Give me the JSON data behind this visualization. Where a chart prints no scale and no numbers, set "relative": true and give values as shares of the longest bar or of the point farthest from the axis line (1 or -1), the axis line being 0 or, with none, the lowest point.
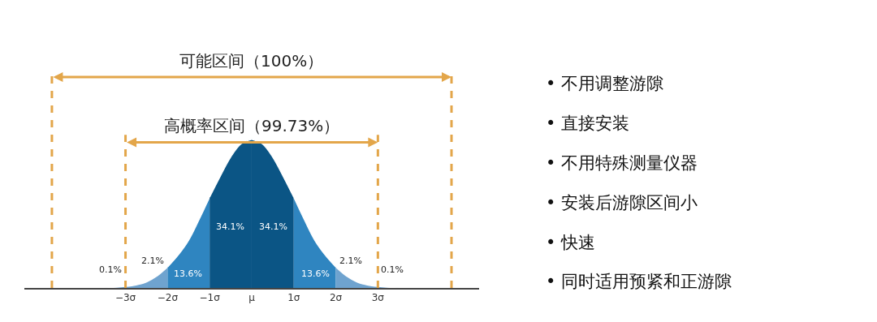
{
  "chart_data": {
    "type": "area",
    "relative": true,
    "xlim": [
      -5.4,
      5.4
    ],
    "xticks": [
      {
        "value": -3,
        "label": "−3σ"
      },
      {
        "value": -2,
        "label": "−2σ"
      },
      {
        "value": -1,
        "label": "−1σ"
      },
      {
        "value": 0,
        "label": "μ"
      },
      {
        "value": 1,
        "label": "1σ"
      },
      {
        "value": 2,
        "label": "2σ"
      },
      {
        "value": 3,
        "label": "3σ"
      }
    ],
    "series": [
      {
        "name": "0.1%",
        "color": "#6fa3cf",
        "x": [
          -4.5,
          -4,
          -3.5,
          -3
        ],
        "values": [
          0,
          0,
          0,
          0.01
        ]
      },
      {
        "name": "2.1%",
        "color": "#6fa3cf",
        "x": [
          -3,
          -2.75,
          -2.5,
          -2.25,
          -2
        ],
        "values": [
          0.01,
          0.02,
          0.04,
          0.08,
          0.14
        ]
      },
      {
        "name": "13.6%",
        "color": "#2f85c0",
        "x": [
          -2,
          -1.75,
          -1.5,
          -1.25,
          -1
        ],
        "values": [
          0.14,
          0.22,
          0.32,
          0.46,
          0.61
        ]
      },
      {
        "name": "34.1%",
        "color": "#0b5585",
        "x": [
          -1,
          -0.75,
          -0.5,
          -0.25,
          0
        ],
        "values": [
          0.61,
          0.75,
          0.88,
          0.97,
          1
        ]
      },
      {
        "name": "34.1%",
        "color": "#0b5585",
        "x": [
          0,
          0.25,
          0.5,
          0.75,
          1
        ],
        "values": [
          1,
          0.97,
          0.88,
          0.75,
          0.61
        ]
      },
      {
        "name": "13.6%",
        "color": "#2f85c0",
        "x": [
          1,
          1.25,
          1.5,
          1.75,
          2
        ],
        "values": [
          0.61,
          0.46,
          0.32,
          0.22,
          0.14
        ]
      },
      {
        "name": "2.1%",
        "color": "#6fa3cf",
        "x": [
          2,
          2.25,
          2.5,
          2.75,
          3
        ],
        "values": [
          0.14,
          0.08,
          0.04,
          0.02,
          0.01
        ]
      },
      {
        "name": "0.1%",
        "color": "#6fa3cf",
        "x": [
          3,
          3.5,
          4,
          4.5
        ],
        "values": [
          0.01,
          0,
          0,
          0
        ]
      }
    ],
    "ref_lines": [
      {
        "axis": "x",
        "value": -4.75,
        "color": "#e3a64a",
        "line_style": "dashed"
      },
      {
        "axis": "x",
        "value": 4.75,
        "color": "#e3a64a",
        "line_style": "dashed"
      },
      {
        "axis": "x",
        "value": -3,
        "color": "#e3a64a",
        "line_style": "dashed"
      },
      {
        "axis": "x",
        "value": 3,
        "color": "#e3a64a",
        "line_style": "dashed"
      }
    ],
    "annotations": [
      "可能区间（100%）",
      "高概率区间（99.73%）",
      "• 不用调整游隙",
      "• 直接安装",
      "• 不用特殊测量仪器",
      "• 安装后游隙区间小",
      "• 快速",
      "• 同时适用预紧和正游隙"
    ]
  }
}
